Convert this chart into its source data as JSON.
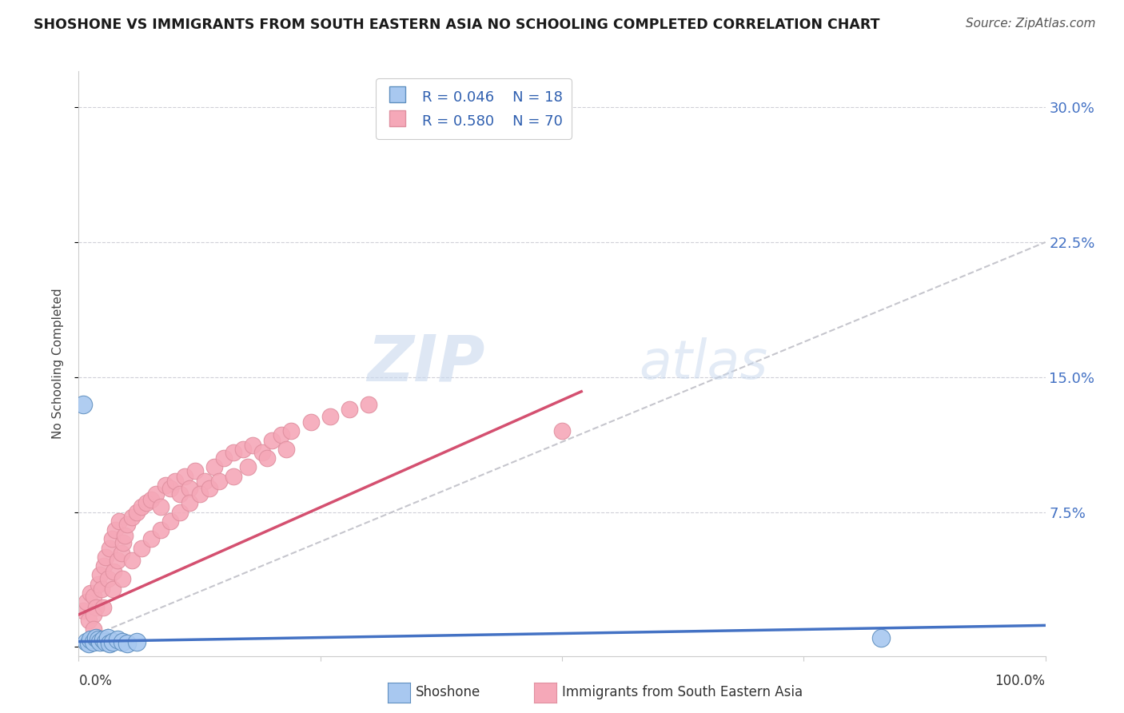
{
  "title": "SHOSHONE VS IMMIGRANTS FROM SOUTH EASTERN ASIA NO SCHOOLING COMPLETED CORRELATION CHART",
  "source": "Source: ZipAtlas.com",
  "ylabel": "No Schooling Completed",
  "yticks": [
    0.0,
    0.075,
    0.15,
    0.225,
    0.3
  ],
  "ytick_labels": [
    "",
    "7.5%",
    "15.0%",
    "22.5%",
    "30.0%"
  ],
  "xlim": [
    0.0,
    1.0
  ],
  "ylim": [
    -0.005,
    0.32
  ],
  "legend_r1": "R = 0.046",
  "legend_n1": "N = 18",
  "legend_r2": "R = 0.580",
  "legend_n2": "N = 70",
  "shoshone_color": "#a8c8f0",
  "immigrants_color": "#f5a8b8",
  "trend_blue": "#4472c4",
  "trend_pink": "#d45070",
  "trend_gray": "#c0c0c8",
  "watermark_zip": "ZIP",
  "watermark_atlas": "atlas",
  "shoshone_x": [
    0.005,
    0.008,
    0.01,
    0.012,
    0.015,
    0.018,
    0.02,
    0.022,
    0.025,
    0.028,
    0.03,
    0.032,
    0.035,
    0.04,
    0.045,
    0.05,
    0.83,
    0.06
  ],
  "shoshone_y": [
    0.005,
    0.003,
    0.002,
    0.004,
    0.003,
    0.005,
    0.004,
    0.003,
    0.004,
    0.003,
    0.005,
    0.002,
    0.003,
    0.004,
    0.003,
    0.002,
    0.005,
    0.003
  ],
  "shoshone_y_outlier": [
    0.135,
    0.003,
    0.002,
    0.004,
    0.003,
    0.005,
    0.004,
    0.003,
    0.004,
    0.003,
    0.005,
    0.002,
    0.003,
    0.004,
    0.003,
    0.002,
    0.005,
    0.003
  ],
  "immigrants_x": [
    0.005,
    0.008,
    0.01,
    0.012,
    0.015,
    0.018,
    0.02,
    0.022,
    0.024,
    0.026,
    0.028,
    0.03,
    0.032,
    0.034,
    0.036,
    0.038,
    0.04,
    0.042,
    0.044,
    0.046,
    0.048,
    0.05,
    0.055,
    0.06,
    0.065,
    0.07,
    0.075,
    0.08,
    0.085,
    0.09,
    0.095,
    0.1,
    0.105,
    0.11,
    0.115,
    0.12,
    0.13,
    0.14,
    0.15,
    0.16,
    0.17,
    0.18,
    0.19,
    0.2,
    0.21,
    0.22,
    0.24,
    0.26,
    0.28,
    0.3,
    0.015,
    0.025,
    0.035,
    0.045,
    0.055,
    0.065,
    0.075,
    0.085,
    0.095,
    0.105,
    0.115,
    0.125,
    0.135,
    0.145,
    0.16,
    0.175,
    0.195,
    0.215,
    0.5,
    0.015
  ],
  "immigrants_y": [
    0.02,
    0.025,
    0.015,
    0.03,
    0.028,
    0.022,
    0.035,
    0.04,
    0.032,
    0.045,
    0.05,
    0.038,
    0.055,
    0.06,
    0.042,
    0.065,
    0.048,
    0.07,
    0.052,
    0.058,
    0.062,
    0.068,
    0.072,
    0.075,
    0.078,
    0.08,
    0.082,
    0.085,
    0.078,
    0.09,
    0.088,
    0.092,
    0.085,
    0.095,
    0.088,
    0.098,
    0.092,
    0.1,
    0.105,
    0.108,
    0.11,
    0.112,
    0.108,
    0.115,
    0.118,
    0.12,
    0.125,
    0.128,
    0.132,
    0.135,
    0.018,
    0.022,
    0.032,
    0.038,
    0.048,
    0.055,
    0.06,
    0.065,
    0.07,
    0.075,
    0.08,
    0.085,
    0.088,
    0.092,
    0.095,
    0.1,
    0.105,
    0.11,
    0.12,
    0.01
  ],
  "blue_trend_x": [
    0.0,
    1.0
  ],
  "blue_trend_y": [
    0.003,
    0.012
  ],
  "pink_trend_x": [
    0.0,
    0.52
  ],
  "pink_trend_y": [
    0.018,
    0.142
  ],
  "gray_trend_x": [
    0.0,
    1.0
  ],
  "gray_trend_y": [
    0.003,
    0.225
  ]
}
